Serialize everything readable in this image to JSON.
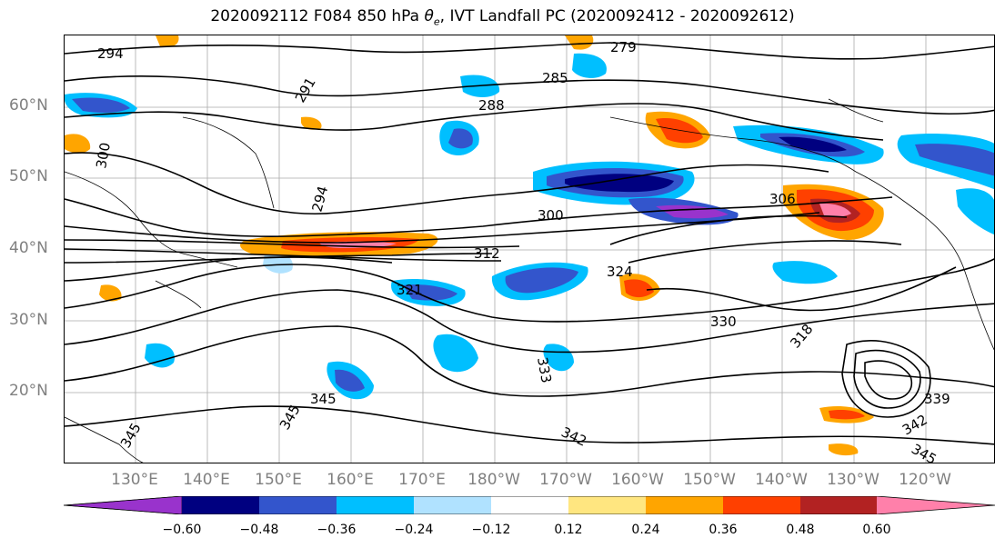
{
  "title_prefix": "2020092112 F084 850 hPa ",
  "title_symbol": "θ",
  "title_sub": "e",
  "title_suffix": ", IVT Landfall PC (2020092412 - 2020092612)",
  "lat_labels": [
    "60°N",
    "50°N",
    "40°N",
    "30°N",
    "20°N"
  ],
  "lon_labels": [
    "130°E",
    "140°E",
    "150°E",
    "160°E",
    "170°E",
    "180°W",
    "170°W",
    "160°W",
    "150°W",
    "140°W",
    "130°W",
    "120°W"
  ],
  "contour_labels": [
    "294",
    "279",
    "285",
    "288",
    "291",
    "294",
    "300",
    "306",
    "300",
    "312",
    "324",
    "321",
    "330",
    "318",
    "333",
    "339",
    "342",
    "345",
    "345",
    "345",
    "342",
    "345"
  ],
  "colorbar": {
    "ticks": [
      "−0.60",
      "−0.48",
      "−0.36",
      "−0.24",
      "−0.12",
      "0.12",
      "0.24",
      "0.36",
      "0.48",
      "0.60"
    ],
    "colors": [
      "#9933cc",
      "#000080",
      "#3355cc",
      "#00bfff",
      "#b0e2ff",
      "#ffffff",
      "#ffe680",
      "#ffa500",
      "#ff4000",
      "#b22222",
      "#ff80aa"
    ]
  }
}
